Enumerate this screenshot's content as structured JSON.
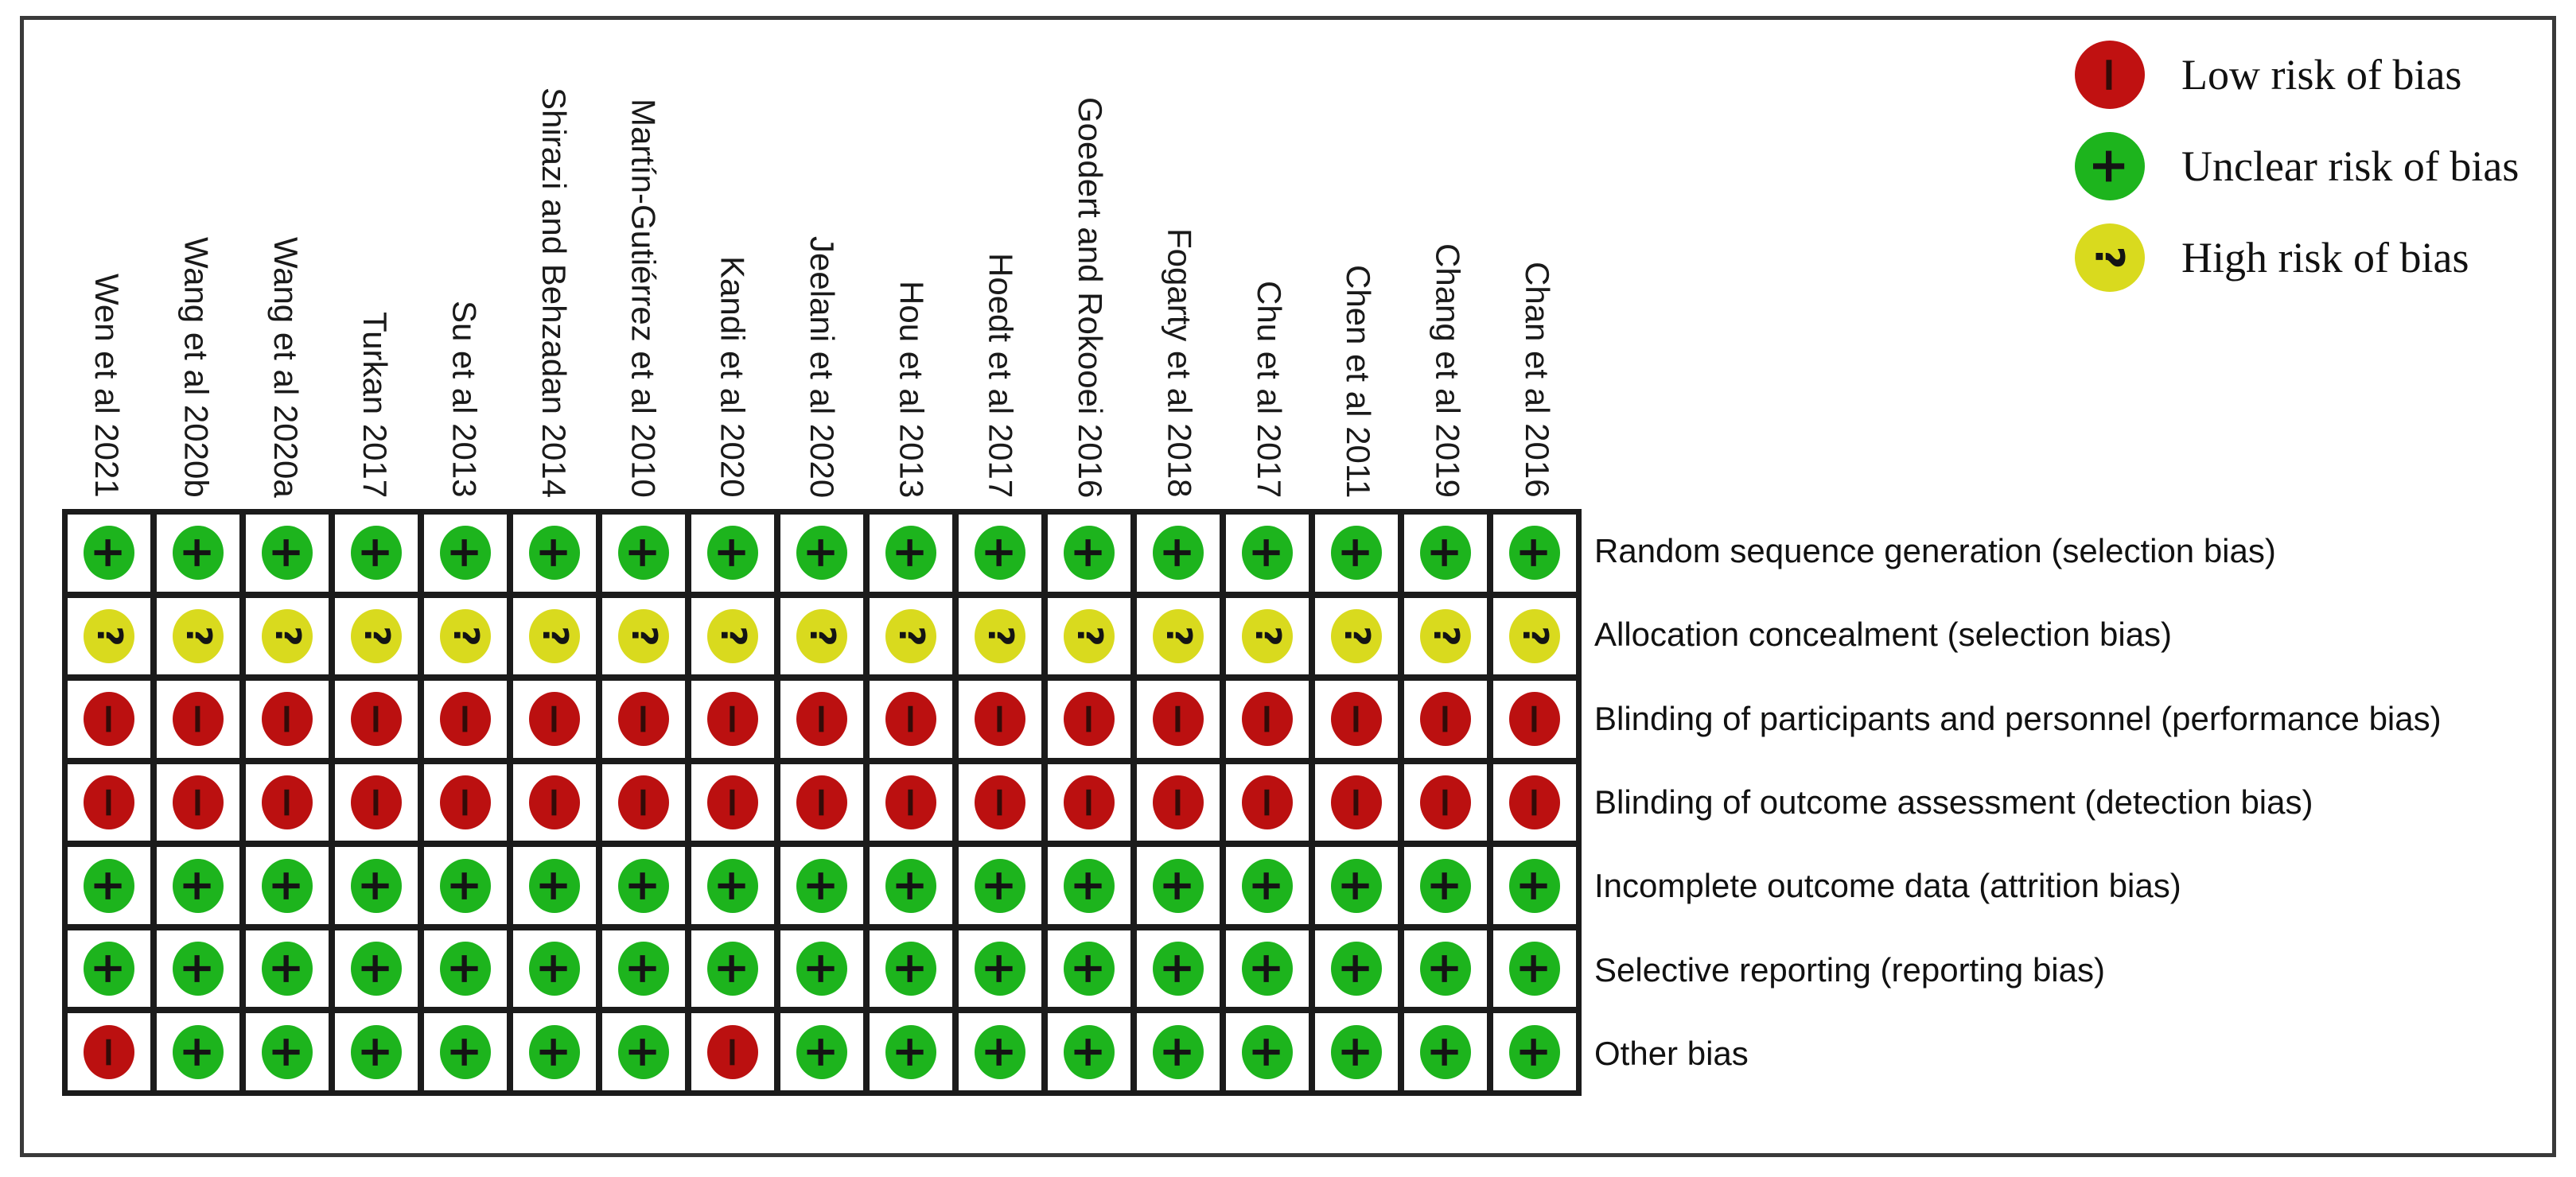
{
  "chart_data": {
    "type": "heatmap",
    "title": "",
    "x": [
      "Wen et al 2021",
      "Wang et al 2020b",
      "Wang et al 2020a",
      "Turkan 2017",
      "Su et al 2013",
      "Shirazi and Behzadan 2014",
      "Martín-Gutiérrez et al 2010",
      "Kandi et al 2020",
      "Jeelani et al 2020",
      "Hou et al 2013",
      "Hoedt et al 2017",
      "Goedert and Rokooei 2016",
      "Fogarty et al 2018",
      "Chu et al 2017",
      "Chen et al 2011",
      "Chang et al 2019",
      "Chan et al 2016"
    ],
    "y": [
      "Random sequence generation (selection bias)",
      "Allocation concealment (selection bias)",
      "Blinding of participants and personnel (performance bias)",
      "Blinding of outcome assessment (detection bias)",
      "Incomplete outcome data (attrition bias)",
      "Selective reporting (reporting bias)",
      "Other bias"
    ],
    "cell_values": [
      [
        "green",
        "green",
        "green",
        "green",
        "green",
        "green",
        "green",
        "green",
        "green",
        "green",
        "green",
        "green",
        "green",
        "green",
        "green",
        "green",
        "green"
      ],
      [
        "yellow",
        "yellow",
        "yellow",
        "yellow",
        "yellow",
        "yellow",
        "yellow",
        "yellow",
        "yellow",
        "yellow",
        "yellow",
        "yellow",
        "yellow",
        "yellow",
        "yellow",
        "yellow",
        "yellow"
      ],
      [
        "red",
        "red",
        "red",
        "red",
        "red",
        "red",
        "red",
        "red",
        "red",
        "red",
        "red",
        "red",
        "red",
        "red",
        "red",
        "red",
        "red"
      ],
      [
        "red",
        "red",
        "red",
        "red",
        "red",
        "red",
        "red",
        "red",
        "red",
        "red",
        "red",
        "red",
        "red",
        "red",
        "red",
        "red",
        "red"
      ],
      [
        "green",
        "green",
        "green",
        "green",
        "green",
        "green",
        "green",
        "green",
        "green",
        "green",
        "green",
        "green",
        "green",
        "green",
        "green",
        "green",
        "green"
      ],
      [
        "green",
        "green",
        "green",
        "green",
        "green",
        "green",
        "green",
        "green",
        "green",
        "green",
        "green",
        "green",
        "green",
        "green",
        "green",
        "green",
        "green"
      ],
      [
        "red",
        "green",
        "green",
        "green",
        "green",
        "green",
        "green",
        "red",
        "green",
        "green",
        "green",
        "green",
        "green",
        "green",
        "green",
        "green",
        "green"
      ]
    ],
    "value_meanings": {
      "red": "Low risk of bias",
      "green": "Unclear risk of bias",
      "yellow": "High risk of bias"
    },
    "legend_position": "top-right",
    "grid": true
  },
  "symbols": {
    "green": "+",
    "yellow": "?",
    "red": "−"
  },
  "symbol_names": {
    "green": "plus",
    "yellow": "question",
    "red": "minus"
  },
  "colors": {
    "green": "#1db41d",
    "yellow": "#d9da1e",
    "red": "#bb1010",
    "legend_red": "#c01111",
    "grid_line": "#1b1b1b",
    "border": "#3a3a3a"
  },
  "legend": {
    "items": [
      {
        "key": "red",
        "color": "#c01111",
        "symbol": "−",
        "symbol_name": "minus",
        "label": "Low risk of bias"
      },
      {
        "key": "green",
        "color": "#1db41d",
        "symbol": "+",
        "symbol_name": "plus",
        "label": "Unclear risk of bias"
      },
      {
        "key": "yellow",
        "color": "#d9da1e",
        "symbol": "?",
        "symbol_name": "question",
        "label": "High risk of bias"
      }
    ]
  }
}
